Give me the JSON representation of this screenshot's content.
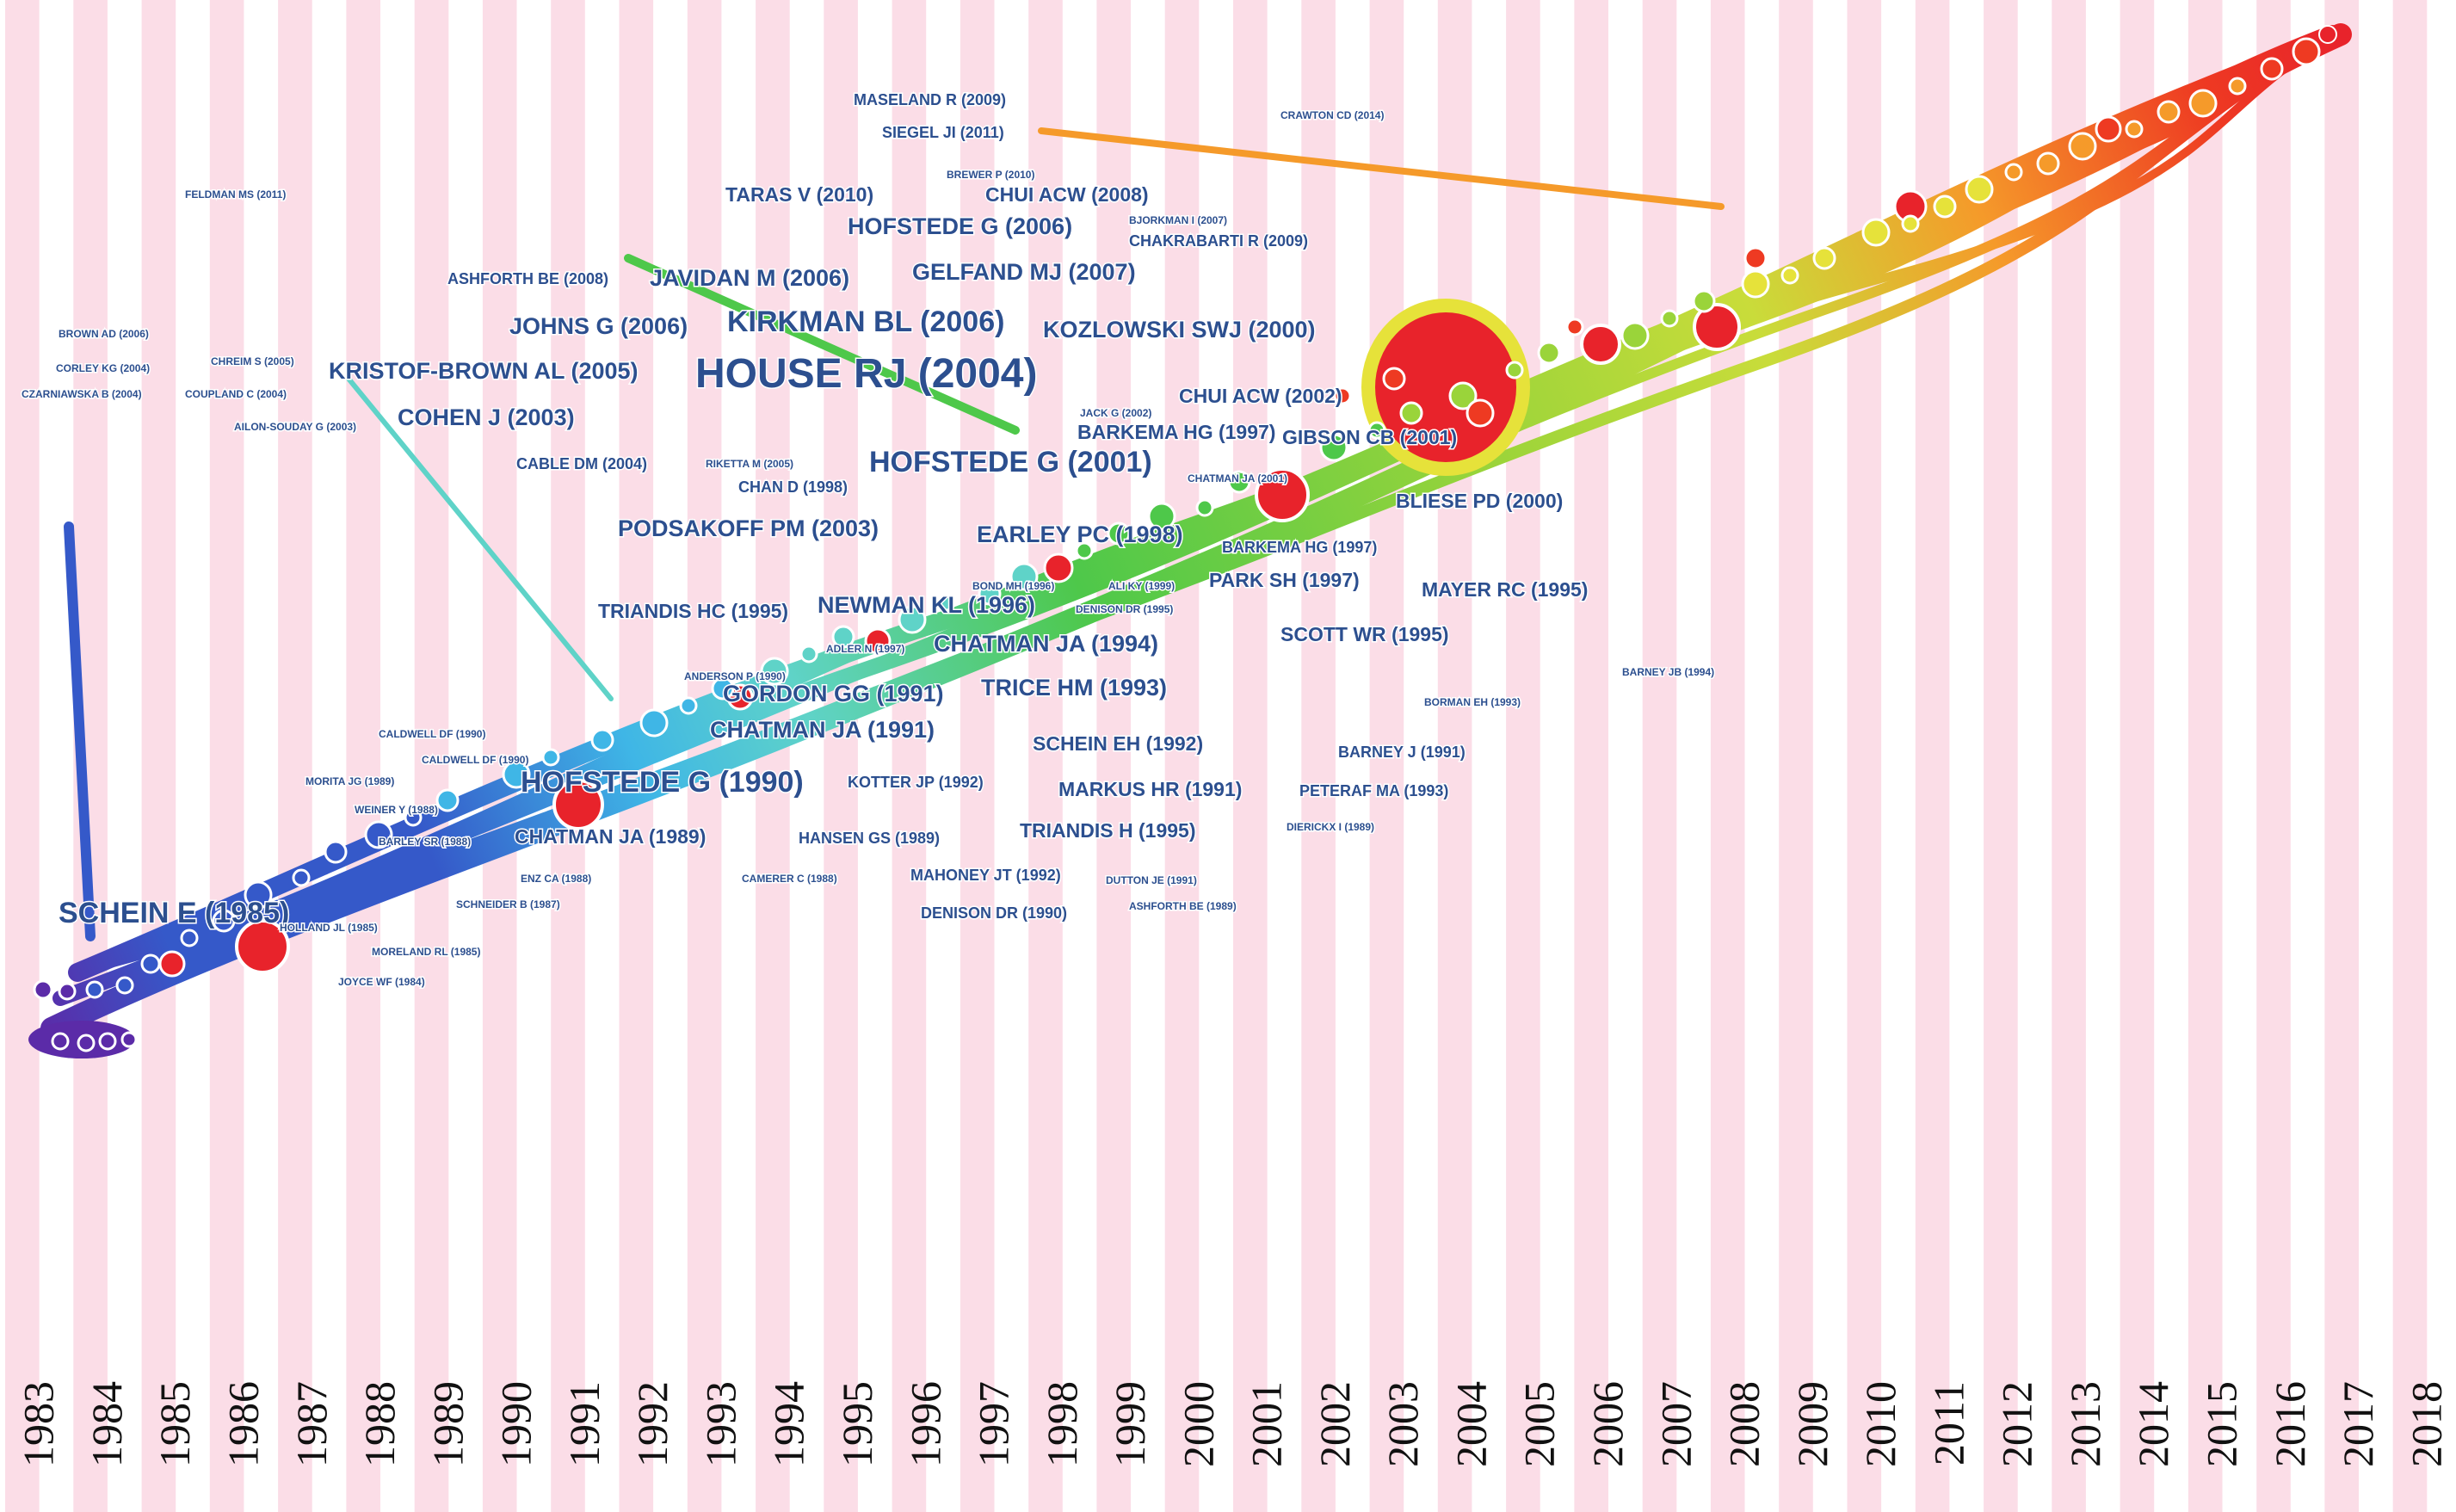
{
  "years": [
    "1983",
    "1984",
    "1985",
    "1986",
    "1987",
    "1988",
    "1989",
    "1990",
    "1991",
    "1992",
    "1993",
    "1994",
    "1995",
    "1996",
    "1997",
    "1998",
    "1999",
    "2000",
    "2001",
    "2002",
    "2003",
    "2004",
    "2005",
    "2006",
    "2007",
    "2008",
    "2009",
    "2010",
    "2011",
    "2012",
    "2013",
    "2014",
    "2015",
    "2016",
    "2017",
    "2018"
  ],
  "colors": {
    "stripe": "#fbdde7",
    "background": "#ffffff",
    "label": "#2c4f8f",
    "hot_node": "#e8232b",
    "stream": [
      "#5b2ba8",
      "#3559c9",
      "#3fb6e6",
      "#5fd3c8",
      "#4ec84a",
      "#9ad43a",
      "#e6e23a",
      "#f59a2a",
      "#ee3a22"
    ]
  },
  "labels": [
    {
      "text": "SCHEIN E (1985)",
      "size": "large"
    },
    {
      "text": "HOFSTEDE G (1990)",
      "size": "large"
    },
    {
      "text": "HOUSE RJ (2004)",
      "size": "xlarge"
    },
    {
      "text": "HOFSTEDE G (2001)",
      "size": "large"
    },
    {
      "text": "KIRKMAN BL (2006)",
      "size": "large"
    },
    {
      "text": "PODSAKOFF PM (2003)",
      "size": "medium"
    },
    {
      "text": "GELFAND MJ (2007)",
      "size": "medium"
    },
    {
      "text": "JAVIDAN M (2006)",
      "size": "medium"
    },
    {
      "text": "HOFSTEDE G (2006)",
      "size": "medium"
    },
    {
      "text": "KRISTOF-BROWN AL (2005)",
      "size": "medium"
    },
    {
      "text": "JOHNS G (2006)",
      "size": "medium"
    },
    {
      "text": "KOZLOWSKI SWJ (2000)",
      "size": "medium"
    },
    {
      "text": "COHEN J (2003)",
      "size": "medium"
    },
    {
      "text": "EARLEY PC (1998)",
      "size": "medium"
    },
    {
      "text": "CHATMAN JA (1994)",
      "size": "medium"
    },
    {
      "text": "TRICE HM (1993)",
      "size": "medium"
    },
    {
      "text": "NEWMAN KL (1996)",
      "size": "medium"
    },
    {
      "text": "CHATMAN JA (1991)",
      "size": "medium"
    },
    {
      "text": "GORDON GG (1991)",
      "size": "medium"
    },
    {
      "text": "TRIANDIS HC (1995)",
      "size": "small"
    },
    {
      "text": "PARK SH (1997)",
      "size": "small"
    },
    {
      "text": "SCOTT WR (1995)",
      "size": "small"
    },
    {
      "text": "MAYER RC (1995)",
      "size": "small"
    },
    {
      "text": "SCHEIN EH (1992)",
      "size": "small"
    },
    {
      "text": "MARKUS HR (1991)",
      "size": "small"
    },
    {
      "text": "TRIANDIS H (1995)",
      "size": "small"
    },
    {
      "text": "TARAS V (2010)",
      "size": "small"
    },
    {
      "text": "CHUI ACW (2008)",
      "size": "small"
    },
    {
      "text": "CHUI ACW (2002)",
      "size": "small"
    },
    {
      "text": "GIBSON CB (2001)",
      "size": "small"
    },
    {
      "text": "BARKEMA HG (1997)",
      "size": "small"
    },
    {
      "text": "CHATMAN JA (1989)",
      "size": "small"
    },
    {
      "text": "BLIESE PD (2000)",
      "size": "small"
    },
    {
      "text": "CHAKRABARTI R (2009)",
      "size": "tiny"
    },
    {
      "text": "SIEGEL JI (2011)",
      "size": "tiny"
    },
    {
      "text": "MASELAND R (2009)",
      "size": "tiny"
    },
    {
      "text": "ASHFORTH BE (2008)",
      "size": "tiny"
    },
    {
      "text": "CABLE DM (2004)",
      "size": "tiny"
    },
    {
      "text": "BARNEY J (1991)",
      "size": "tiny"
    },
    {
      "text": "PETERAF MA (1993)",
      "size": "tiny"
    },
    {
      "text": "KOTTER JP (1992)",
      "size": "tiny"
    },
    {
      "text": "HANSEN GS (1989)",
      "size": "tiny"
    },
    {
      "text": "MAHONEY JT (1992)",
      "size": "tiny"
    },
    {
      "text": "DENISON DR (1990)",
      "size": "tiny"
    },
    {
      "text": "CHAN D (1998)",
      "size": "tiny"
    },
    {
      "text": "BARKEMA HG (1997)",
      "size": "tiny"
    },
    {
      "text": "CRAWTON CD (2014)",
      "size": "micro"
    },
    {
      "text": "BREWER P (2010)",
      "size": "micro"
    },
    {
      "text": "BJORKMAN I (2007)",
      "size": "micro"
    },
    {
      "text": "FELDMAN MS (2011)",
      "size": "micro"
    },
    {
      "text": "BROWN AD (2006)",
      "size": "micro"
    },
    {
      "text": "CORLEY KG (2004)",
      "size": "micro"
    },
    {
      "text": "CZARNIAWSKA B (2004)",
      "size": "micro"
    },
    {
      "text": "CHREIM S (2005)",
      "size": "micro"
    },
    {
      "text": "COUPLAND C (2004)",
      "size": "micro"
    },
    {
      "text": "AILON-SOUDAY G (2003)",
      "size": "micro"
    },
    {
      "text": "RIKETTA M (2005)",
      "size": "micro"
    },
    {
      "text": "JACK G (2002)",
      "size": "micro"
    },
    {
      "text": "CHATMAN JA (2001)",
      "size": "micro"
    },
    {
      "text": "BOND MH (1996)",
      "size": "micro"
    },
    {
      "text": "ALI KY (1999)",
      "size": "micro"
    },
    {
      "text": "DENISON DR (1995)",
      "size": "micro"
    },
    {
      "text": "ADLER N (1997)",
      "size": "micro"
    },
    {
      "text": "ANDERSON P (1990)",
      "size": "micro"
    },
    {
      "text": "BARNEY JB (1994)",
      "size": "micro"
    },
    {
      "text": "BORMAN EH (1993)",
      "size": "micro"
    },
    {
      "text": "DIERICKX I (1989)",
      "size": "micro"
    },
    {
      "text": "CALDWELL DF (1990)",
      "size": "micro"
    },
    {
      "text": "CALDWELL DF (1990)",
      "size": "micro"
    },
    {
      "text": "MORITA JG (1989)",
      "size": "micro"
    },
    {
      "text": "WEINER Y (1988)",
      "size": "micro"
    },
    {
      "text": "BARLEY SR (1988)",
      "size": "micro"
    },
    {
      "text": "ENZ CA (1988)",
      "size": "micro"
    },
    {
      "text": "SCHNEIDER B (1987)",
      "size": "micro"
    },
    {
      "text": "HOLLAND JL (1985)",
      "size": "micro"
    },
    {
      "text": "MORELAND RL (1985)",
      "size": "micro"
    },
    {
      "text": "JOYCE WF (1984)",
      "size": "micro"
    },
    {
      "text": "CAMERER C (1988)",
      "size": "micro"
    },
    {
      "text": "DUTTON JE (1991)",
      "size": "micro"
    },
    {
      "text": "ASHFORTH BE (1989)",
      "size": "micro"
    }
  ]
}
